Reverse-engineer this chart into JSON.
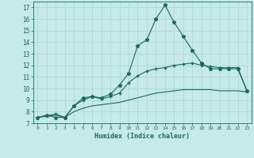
{
  "xlabel": "Humidex (Indice chaleur)",
  "ylabel": "",
  "xlim": [
    -0.5,
    23.5
  ],
  "ylim": [
    7,
    17.5
  ],
  "xticks": [
    0,
    1,
    2,
    3,
    4,
    5,
    6,
    7,
    8,
    9,
    10,
    11,
    12,
    13,
    14,
    15,
    16,
    17,
    18,
    19,
    20,
    21,
    22,
    23
  ],
  "yticks": [
    7,
    8,
    9,
    10,
    11,
    12,
    13,
    14,
    15,
    16,
    17
  ],
  "background_color": "#c6e9e9",
  "grid_color": "#b0d8d8",
  "line_color": "#1a6b5a",
  "line1_x": [
    0,
    1,
    2,
    3,
    4,
    5,
    6,
    7,
    8,
    9,
    10,
    11,
    12,
    13,
    14,
    15,
    16,
    17,
    18,
    19,
    20,
    21,
    22,
    23
  ],
  "line1_y": [
    7.5,
    7.7,
    7.5,
    7.5,
    8.5,
    9.2,
    9.3,
    9.2,
    9.5,
    10.3,
    11.3,
    13.7,
    14.2,
    16.0,
    17.2,
    15.7,
    14.5,
    13.3,
    12.2,
    11.7,
    11.7,
    11.7,
    11.7,
    9.8
  ],
  "line2_x": [
    0,
    2,
    3,
    4,
    5,
    6,
    7,
    8,
    9,
    10,
    11,
    12,
    13,
    14,
    15,
    16,
    17,
    18,
    19,
    20,
    21,
    22,
    23
  ],
  "line2_y": [
    7.5,
    7.8,
    7.5,
    8.5,
    9.0,
    9.3,
    9.1,
    9.3,
    9.6,
    10.5,
    11.1,
    11.5,
    11.7,
    11.8,
    12.0,
    12.1,
    12.2,
    12.0,
    11.9,
    11.8,
    11.8,
    11.8,
    9.8
  ],
  "line3_x": [
    0,
    1,
    2,
    3,
    4,
    5,
    6,
    7,
    8,
    9,
    10,
    11,
    12,
    13,
    14,
    15,
    16,
    17,
    18,
    19,
    20,
    21,
    22,
    23
  ],
  "line3_y": [
    7.5,
    7.6,
    7.7,
    7.5,
    8.0,
    8.3,
    8.5,
    8.6,
    8.7,
    8.8,
    9.0,
    9.2,
    9.4,
    9.6,
    9.7,
    9.8,
    9.9,
    9.9,
    9.9,
    9.9,
    9.8,
    9.8,
    9.8,
    9.7
  ]
}
